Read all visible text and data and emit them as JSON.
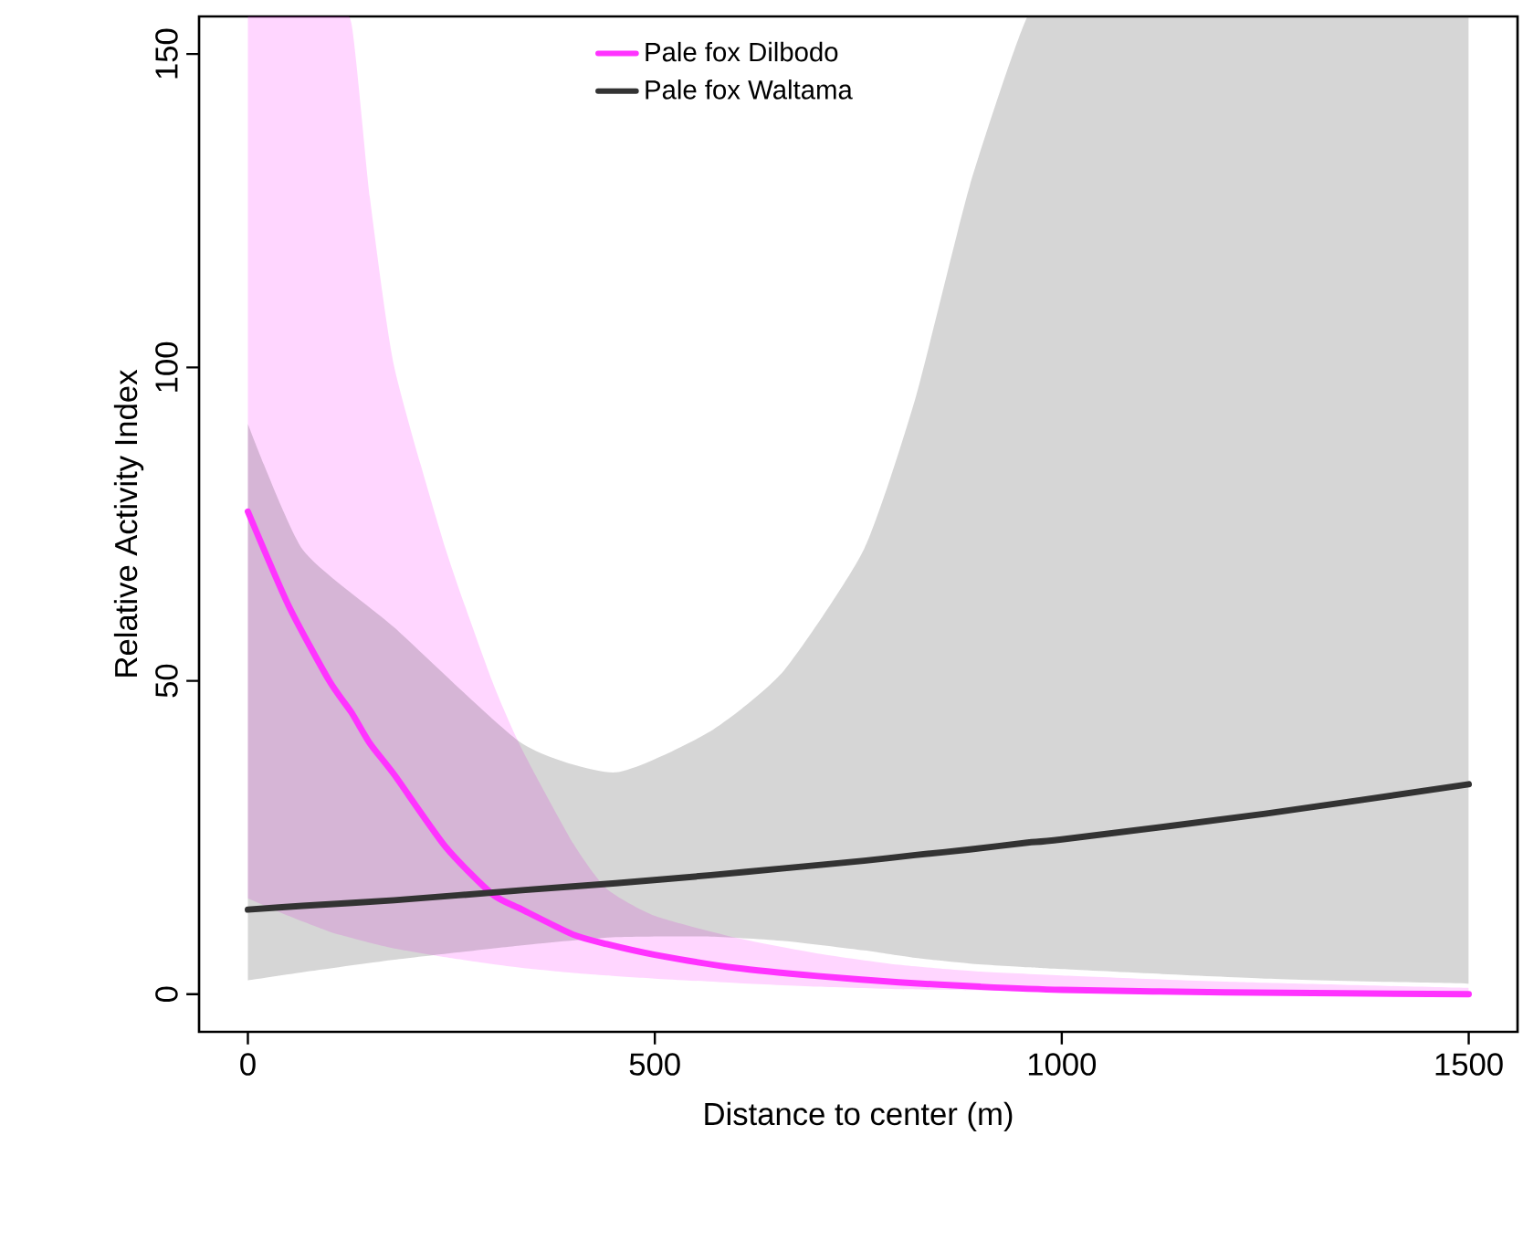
{
  "chart_data": {
    "type": "line",
    "xlabel": "Distance to center (m)",
    "ylabel": "Relative Activity Index",
    "xlim": [
      -60,
      1560
    ],
    "ylim": [
      -6,
      156
    ],
    "xticks": [
      0,
      500,
      1000,
      1500
    ],
    "yticks": [
      0,
      50,
      100,
      150
    ],
    "legend": "top",
    "series": [
      {
        "name": "Pale fox Dilbodo",
        "color": "#ff33ff",
        "x": [
          0,
          50,
          100,
          127,
          150,
          180,
          243,
          300,
          337,
          400,
          441,
          500,
          600,
          700,
          800,
          900,
          1000,
          1200,
          1500
        ],
        "values": [
          77,
          62,
          50,
          45,
          40,
          35,
          23.5,
          16,
          13.5,
          9.5,
          8,
          6.3,
          4.2,
          2.9,
          1.9,
          1.2,
          0.7,
          0.3,
          0
        ],
        "upper": [
          156,
          156,
          156,
          155,
          127,
          100,
          71,
          50,
          39,
          24,
          16.8,
          12.5,
          9,
          6.5,
          4.7,
          3.6,
          3,
          2,
          1
        ],
        "lower": [
          15.3,
          12.5,
          10,
          9,
          8.2,
          7.3,
          5.9,
          4.8,
          4.2,
          3.4,
          3,
          2.5,
          1.8,
          1.2,
          0.8,
          0.6,
          0.4,
          0.2,
          0
        ]
      },
      {
        "name": "Pale fox Waltama",
        "color": "#333333",
        "x": [
          0,
          67,
          180,
          337,
          452,
          569,
          659,
          757,
          820,
          887,
          958,
          1000,
          1250,
          1500
        ],
        "values": [
          13.5,
          14.1,
          15,
          16.6,
          17.7,
          19,
          20.1,
          21.3,
          22.2,
          23.1,
          24.2,
          24.7,
          28.8,
          33.5
        ],
        "upper": [
          91,
          71,
          58.5,
          40,
          35.4,
          42,
          51.7,
          71,
          95,
          129,
          156,
          156,
          156,
          156
        ],
        "lower": [
          2.2,
          3.5,
          5.5,
          7.8,
          9.1,
          9.2,
          8.5,
          7,
          5.8,
          4.9,
          4.3,
          4,
          2.5,
          1.7
        ]
      }
    ]
  }
}
